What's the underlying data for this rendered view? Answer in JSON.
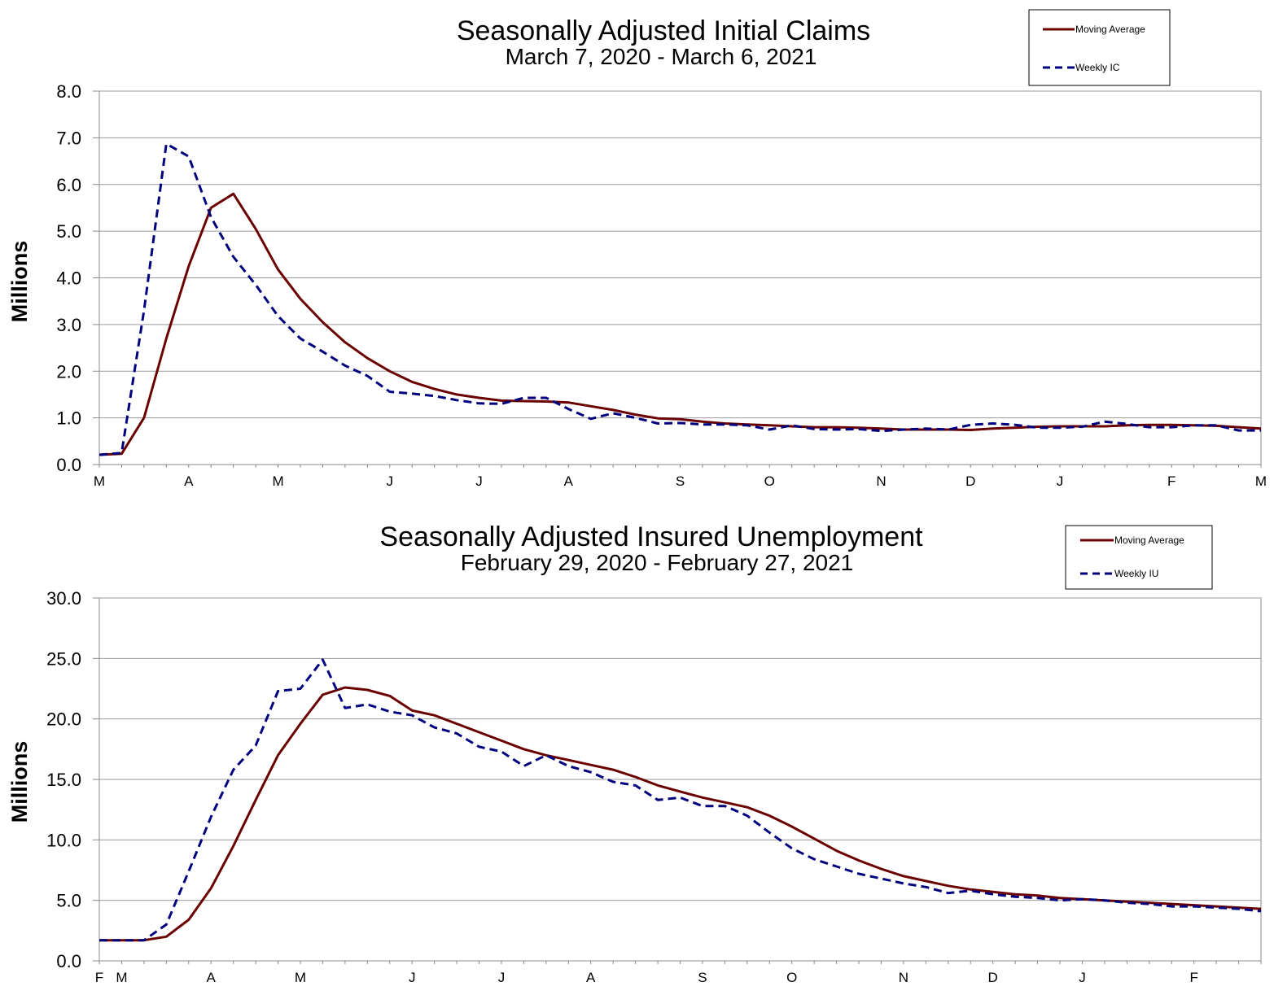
{
  "colors": {
    "moving_average": "#6b0000",
    "weekly": "#00007f",
    "grid": "#9a9a9a",
    "axis": "#888888"
  },
  "chart_data": [
    {
      "type": "line",
      "title": "Seasonally Adjusted Initial Claims",
      "subtitle": "March 7, 2020 - March 6, 2021",
      "ylabel": "Millions",
      "ylim": [
        0,
        8
      ],
      "yticks": [
        "0.0",
        "1.0",
        "2.0",
        "3.0",
        "4.0",
        "5.0",
        "6.0",
        "7.0",
        "8.0"
      ],
      "x_tick_labels": [
        {
          "label": "M",
          "week": 0
        },
        {
          "label": "A",
          "week": 4
        },
        {
          "label": "M",
          "week": 8
        },
        {
          "label": "J",
          "week": 13
        },
        {
          "label": "J",
          "week": 17
        },
        {
          "label": "A",
          "week": 21
        },
        {
          "label": "S",
          "week": 26
        },
        {
          "label": "O",
          "week": 30
        },
        {
          "label": "N",
          "week": 35
        },
        {
          "label": "D",
          "week": 39
        },
        {
          "label": "J",
          "week": 43
        },
        {
          "label": "F",
          "week": 48
        },
        {
          "label": "M",
          "week": 52
        }
      ],
      "week_count": 52,
      "grid": true,
      "legend_position": "top-right",
      "series": [
        {
          "name": "Moving Average",
          "style": "solid",
          "values": [
            0.21,
            0.23,
            1.0,
            2.7,
            4.25,
            5.5,
            5.8,
            5.05,
            4.18,
            3.55,
            3.05,
            2.62,
            2.28,
            2.0,
            1.77,
            1.62,
            1.5,
            1.43,
            1.37,
            1.36,
            1.35,
            1.33,
            1.25,
            1.17,
            1.07,
            0.99,
            0.97,
            0.92,
            0.88,
            0.86,
            0.84,
            0.82,
            0.8,
            0.8,
            0.79,
            0.77,
            0.75,
            0.75,
            0.75,
            0.74,
            0.77,
            0.79,
            0.81,
            0.82,
            0.82,
            0.82,
            0.84,
            0.85,
            0.85,
            0.84,
            0.83,
            0.8,
            0.77
          ]
        },
        {
          "name": "Weekly IC",
          "style": "dashed",
          "values": [
            0.21,
            0.25,
            3.3,
            6.87,
            6.6,
            5.3,
            4.45,
            3.85,
            3.18,
            2.7,
            2.42,
            2.12,
            1.9,
            1.56,
            1.52,
            1.47,
            1.38,
            1.31,
            1.3,
            1.43,
            1.43,
            1.19,
            0.98,
            1.1,
            1.0,
            0.88,
            0.89,
            0.86,
            0.86,
            0.84,
            0.75,
            0.84,
            0.76,
            0.75,
            0.76,
            0.72,
            0.75,
            0.77,
            0.75,
            0.85,
            0.88,
            0.85,
            0.79,
            0.79,
            0.81,
            0.92,
            0.87,
            0.8,
            0.8,
            0.84,
            0.84,
            0.73,
            0.73
          ]
        }
      ]
    },
    {
      "type": "line",
      "title": "Seasonally Adjusted Insured Unemployment",
      "subtitle": "February 29, 2020 - February 27, 2021",
      "ylabel": "Millions",
      "ylim": [
        0,
        30
      ],
      "yticks": [
        "0.0",
        "5.0",
        "10.0",
        "15.0",
        "20.0",
        "25.0",
        "30.0"
      ],
      "x_tick_labels": [
        {
          "label": "F",
          "week": 0
        },
        {
          "label": "M",
          "week": 1
        },
        {
          "label": "A",
          "week": 5
        },
        {
          "label": "M",
          "week": 9
        },
        {
          "label": "J",
          "week": 14
        },
        {
          "label": "J",
          "week": 18
        },
        {
          "label": "A",
          "week": 22
        },
        {
          "label": "S",
          "week": 27
        },
        {
          "label": "O",
          "week": 31
        },
        {
          "label": "N",
          "week": 36
        },
        {
          "label": "D",
          "week": 40
        },
        {
          "label": "J",
          "week": 44
        },
        {
          "label": "F",
          "week": 49
        }
      ],
      "week_count": 52,
      "grid": true,
      "legend_position": "top-right",
      "series": [
        {
          "name": "Moving Average",
          "style": "solid",
          "values": [
            1.7,
            1.7,
            1.7,
            2.0,
            3.4,
            6.0,
            9.5,
            13.3,
            17.0,
            19.6,
            22.0,
            22.6,
            22.4,
            21.9,
            20.7,
            20.3,
            19.6,
            18.9,
            18.2,
            17.5,
            17.0,
            16.6,
            16.2,
            15.8,
            15.2,
            14.5,
            14.0,
            13.5,
            13.1,
            12.7,
            12.0,
            11.1,
            10.1,
            9.1,
            8.3,
            7.6,
            7.0,
            6.6,
            6.2,
            5.9,
            5.7,
            5.5,
            5.4,
            5.2,
            5.1,
            5.0,
            4.9,
            4.8,
            4.7,
            4.6,
            4.5,
            4.4,
            4.3
          ]
        },
        {
          "name": "Weekly IU",
          "style": "dashed",
          "values": [
            1.7,
            1.7,
            1.7,
            3.0,
            7.4,
            11.9,
            15.8,
            17.8,
            22.3,
            22.5,
            24.9,
            20.9,
            21.2,
            20.6,
            20.3,
            19.3,
            18.8,
            17.7,
            17.3,
            16.1,
            17.0,
            16.1,
            15.6,
            14.8,
            14.5,
            13.3,
            13.5,
            12.8,
            12.8,
            12.0,
            10.6,
            9.3,
            8.4,
            7.8,
            7.2,
            6.8,
            6.4,
            6.1,
            5.6,
            5.8,
            5.5,
            5.3,
            5.2,
            5.0,
            5.1,
            5.0,
            4.8,
            4.7,
            4.5,
            4.5,
            4.4,
            4.3,
            4.1
          ]
        }
      ]
    }
  ]
}
